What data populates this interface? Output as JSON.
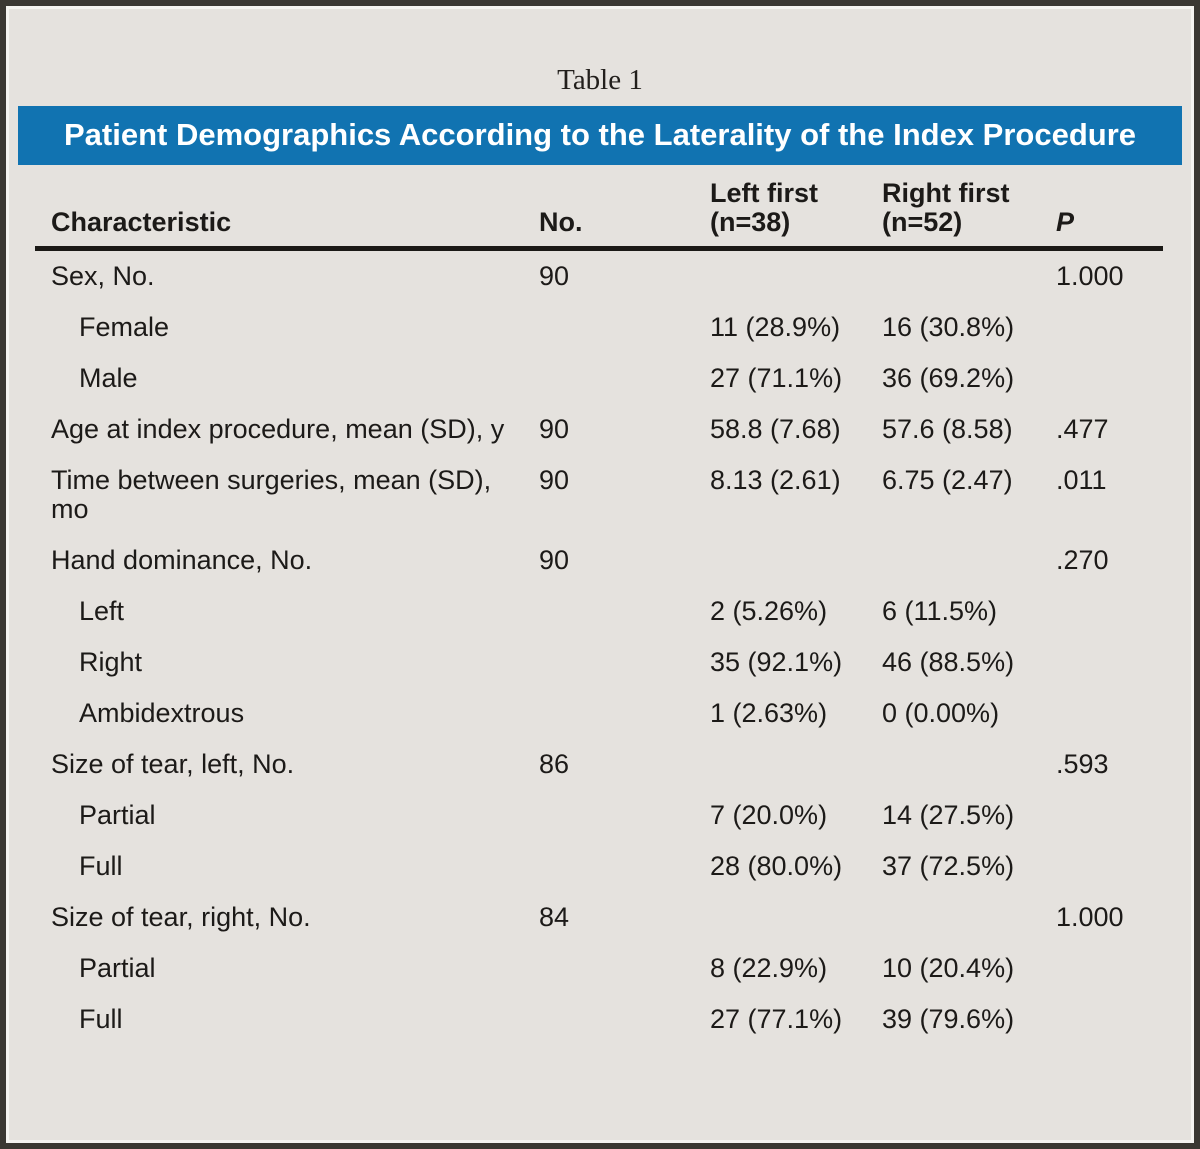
{
  "page": {
    "table_label": "Table 1",
    "banner_title": "Patient Demographics According to the Laterality of the Index Procedure",
    "banner_color": "#1173b1",
    "background_color": "#e5e2de",
    "text_color": "#1c1a18"
  },
  "table": {
    "columns": {
      "characteristic": "Characteristic",
      "no": "No.",
      "left_first": {
        "line1": "Left first",
        "line2": "(n=38)"
      },
      "right_first": {
        "line1": "Right first",
        "line2": "(n=52)"
      },
      "p": "P"
    },
    "rows": [
      {
        "label": "Sex, No.",
        "indent": false,
        "no": "90",
        "left": "",
        "right": "",
        "p": "1.000"
      },
      {
        "label": "Female",
        "indent": true,
        "no": "",
        "left": "11 (28.9%)",
        "right": "16 (30.8%)",
        "p": ""
      },
      {
        "label": "Male",
        "indent": true,
        "no": "",
        "left": "27 (71.1%)",
        "right": "36 (69.2%)",
        "p": ""
      },
      {
        "label": "Age at index procedure, mean (SD), y",
        "indent": false,
        "no": "90",
        "left": "58.8 (7.68)",
        "right": "57.6 (8.58)",
        "p": ".477"
      },
      {
        "label": "Time between surgeries, mean (SD),\nmo",
        "indent": false,
        "no": "90",
        "left": "8.13 (2.61)",
        "right": "6.75 (2.47)",
        "p": ".011"
      },
      {
        "label": "Hand dominance, No.",
        "indent": false,
        "no": "90",
        "left": "",
        "right": "",
        "p": ".270"
      },
      {
        "label": "Left",
        "indent": true,
        "no": "",
        "left": "2 (5.26%)",
        "right": "6 (11.5%)",
        "p": ""
      },
      {
        "label": "Right",
        "indent": true,
        "no": "",
        "left": "35 (92.1%)",
        "right": "46 (88.5%)",
        "p": ""
      },
      {
        "label": "Ambidextrous",
        "indent": true,
        "no": "",
        "left": "1 (2.63%)",
        "right": "0 (0.00%)",
        "p": ""
      },
      {
        "label": "Size of tear, left, No.",
        "indent": false,
        "no": "86",
        "left": "",
        "right": "",
        "p": ".593"
      },
      {
        "label": "Partial",
        "indent": true,
        "no": "",
        "left": "7 (20.0%)",
        "right": "14 (27.5%)",
        "p": ""
      },
      {
        "label": "Full",
        "indent": true,
        "no": "",
        "left": "28 (80.0%)",
        "right": "37 (72.5%)",
        "p": ""
      },
      {
        "label": "Size of tear, right, No.",
        "indent": false,
        "no": "84",
        "left": "",
        "right": "",
        "p": "1.000"
      },
      {
        "label": "Partial",
        "indent": true,
        "no": "",
        "left": "8 (22.9%)",
        "right": "10 (20.4%)",
        "p": ""
      },
      {
        "label": "Full",
        "indent": true,
        "no": "",
        "left": "27 (77.1%)",
        "right": "39 (79.6%)",
        "p": ""
      }
    ]
  }
}
